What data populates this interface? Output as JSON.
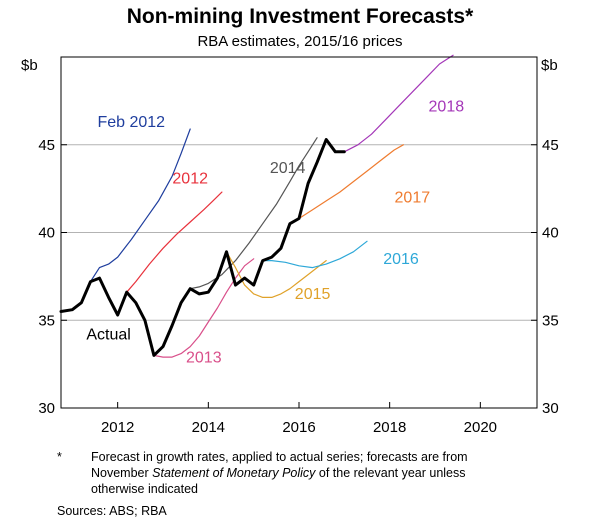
{
  "chart_data": {
    "type": "line",
    "title": "Non-mining Investment Forecasts*",
    "subtitle": "RBA estimates, 2015/16 prices",
    "ylabel_left": "$b",
    "ylabel_right": "$b",
    "ylim": [
      30,
      50
    ],
    "xlim": [
      2010.75,
      2021.25
    ],
    "yticks": [
      30,
      35,
      40,
      45
    ],
    "xticks": [
      2012,
      2014,
      2016,
      2018,
      2020
    ],
    "grid": true,
    "series": [
      {
        "name": "Actual",
        "color": "#000000",
        "thick": true,
        "points": [
          [
            2010.75,
            35.5
          ],
          [
            2011.0,
            35.6
          ],
          [
            2011.2,
            36.0
          ],
          [
            2011.4,
            37.2
          ],
          [
            2011.6,
            37.4
          ],
          [
            2011.8,
            36.3
          ],
          [
            2012.0,
            35.3
          ],
          [
            2012.2,
            36.6
          ],
          [
            2012.4,
            36.0
          ],
          [
            2012.6,
            35.0
          ],
          [
            2012.8,
            33.0
          ],
          [
            2013.0,
            33.5
          ],
          [
            2013.2,
            34.7
          ],
          [
            2013.4,
            36.0
          ],
          [
            2013.6,
            36.8
          ],
          [
            2013.8,
            36.5
          ],
          [
            2014.0,
            36.6
          ],
          [
            2014.2,
            37.4
          ],
          [
            2014.4,
            38.9
          ],
          [
            2014.6,
            37.0
          ],
          [
            2014.8,
            37.4
          ],
          [
            2015.0,
            37.0
          ],
          [
            2015.2,
            38.4
          ],
          [
            2015.4,
            38.6
          ],
          [
            2015.6,
            39.1
          ],
          [
            2015.8,
            40.5
          ],
          [
            2016.0,
            40.8
          ],
          [
            2016.2,
            42.8
          ],
          [
            2016.4,
            44.0
          ],
          [
            2016.6,
            45.3
          ],
          [
            2016.8,
            44.6
          ],
          [
            2017.0,
            44.6
          ]
        ]
      },
      {
        "name": "Feb 2012",
        "color": "#1f3e9e",
        "points": [
          [
            2011.4,
            37.2
          ],
          [
            2011.6,
            38.0
          ],
          [
            2011.8,
            38.2
          ],
          [
            2012.0,
            38.6
          ],
          [
            2012.3,
            39.6
          ],
          [
            2012.6,
            40.7
          ],
          [
            2012.9,
            41.8
          ],
          [
            2013.2,
            43.2
          ],
          [
            2013.4,
            44.5
          ],
          [
            2013.6,
            45.9
          ]
        ]
      },
      {
        "name": "2012",
        "color": "#e8323c",
        "points": [
          [
            2012.2,
            36.6
          ],
          [
            2012.4,
            37.2
          ],
          [
            2012.7,
            38.2
          ],
          [
            2013.0,
            39.1
          ],
          [
            2013.3,
            39.9
          ],
          [
            2013.6,
            40.6
          ],
          [
            2013.9,
            41.3
          ],
          [
            2014.1,
            41.8
          ],
          [
            2014.3,
            42.3
          ]
        ]
      },
      {
        "name": "2013",
        "color": "#d94f8a",
        "points": [
          [
            2012.8,
            33.0
          ],
          [
            2013.0,
            32.9
          ],
          [
            2013.2,
            32.9
          ],
          [
            2013.4,
            33.1
          ],
          [
            2013.6,
            33.5
          ],
          [
            2013.8,
            34.1
          ],
          [
            2014.0,
            34.9
          ],
          [
            2014.2,
            35.7
          ],
          [
            2014.4,
            36.6
          ],
          [
            2014.6,
            37.4
          ],
          [
            2014.8,
            38.1
          ],
          [
            2015.0,
            38.5
          ]
        ]
      },
      {
        "name": "2014",
        "color": "#555555",
        "points": [
          [
            2013.6,
            36.8
          ],
          [
            2013.8,
            36.9
          ],
          [
            2014.0,
            37.1
          ],
          [
            2014.3,
            37.6
          ],
          [
            2014.6,
            38.4
          ],
          [
            2014.9,
            39.4
          ],
          [
            2015.2,
            40.5
          ],
          [
            2015.5,
            41.6
          ],
          [
            2015.8,
            42.9
          ],
          [
            2016.0,
            43.8
          ],
          [
            2016.2,
            44.6
          ],
          [
            2016.4,
            45.4
          ]
        ]
      },
      {
        "name": "2015",
        "color": "#e0a22a",
        "points": [
          [
            2014.4,
            38.9
          ],
          [
            2014.6,
            38.0
          ],
          [
            2014.8,
            37.0
          ],
          [
            2015.0,
            36.5
          ],
          [
            2015.2,
            36.3
          ],
          [
            2015.4,
            36.3
          ],
          [
            2015.6,
            36.5
          ],
          [
            2015.8,
            36.8
          ],
          [
            2016.0,
            37.2
          ],
          [
            2016.2,
            37.6
          ],
          [
            2016.4,
            38.0
          ],
          [
            2016.6,
            38.4
          ]
        ]
      },
      {
        "name": "2016",
        "color": "#2ea8d8",
        "points": [
          [
            2015.2,
            38.4
          ],
          [
            2015.4,
            38.4
          ],
          [
            2015.7,
            38.3
          ],
          [
            2016.0,
            38.1
          ],
          [
            2016.3,
            38.0
          ],
          [
            2016.6,
            38.2
          ],
          [
            2016.9,
            38.5
          ],
          [
            2017.2,
            38.9
          ],
          [
            2017.5,
            39.5
          ]
        ]
      },
      {
        "name": "2017",
        "color": "#ef7c30",
        "points": [
          [
            2015.8,
            40.5
          ],
          [
            2016.0,
            40.8
          ],
          [
            2016.3,
            41.3
          ],
          [
            2016.6,
            41.8
          ],
          [
            2016.9,
            42.3
          ],
          [
            2017.2,
            42.9
          ],
          [
            2017.5,
            43.5
          ],
          [
            2017.8,
            44.1
          ],
          [
            2018.1,
            44.7
          ],
          [
            2018.3,
            45.0
          ]
        ]
      },
      {
        "name": "2018",
        "color": "#a437b8",
        "points": [
          [
            2016.8,
            44.6
          ],
          [
            2017.0,
            44.6
          ],
          [
            2017.3,
            45.0
          ],
          [
            2017.6,
            45.6
          ],
          [
            2017.9,
            46.4
          ],
          [
            2018.2,
            47.2
          ],
          [
            2018.5,
            48.0
          ],
          [
            2018.8,
            48.8
          ],
          [
            2019.1,
            49.6
          ],
          [
            2019.4,
            50.1
          ]
        ]
      }
    ],
    "labels": [
      {
        "text": "Feb 2012",
        "x": 2012.3,
        "y": 46.0,
        "series": "Feb 2012"
      },
      {
        "text": "2012",
        "x": 2013.6,
        "y": 42.8,
        "series": "2012"
      },
      {
        "text": "2013",
        "x": 2013.9,
        "y": 32.6,
        "series": "2013"
      },
      {
        "text": "2014",
        "x": 2015.75,
        "y": 43.4,
        "series": "2014"
      },
      {
        "text": "2015",
        "x": 2016.3,
        "y": 36.2,
        "series": "2015"
      },
      {
        "text": "2016",
        "x": 2018.25,
        "y": 38.2,
        "series": "2016"
      },
      {
        "text": "2017",
        "x": 2018.5,
        "y": 41.7,
        "series": "2017"
      },
      {
        "text": "2018",
        "x": 2019.25,
        "y": 46.9,
        "series": "2018"
      },
      {
        "text": "Actual",
        "x": 2011.8,
        "y": 33.9,
        "series": "Actual"
      }
    ]
  },
  "footnote": {
    "marker": "*",
    "line1": "Forecast in growth rates, applied to actual series; forecasts are from",
    "line2_pre": "November ",
    "line2_italic": "Statement of Monetary Policy",
    "line2_post": " of the relevant year unless",
    "line3": "otherwise indicated"
  },
  "sources": "Sources:   ABS; RBA"
}
